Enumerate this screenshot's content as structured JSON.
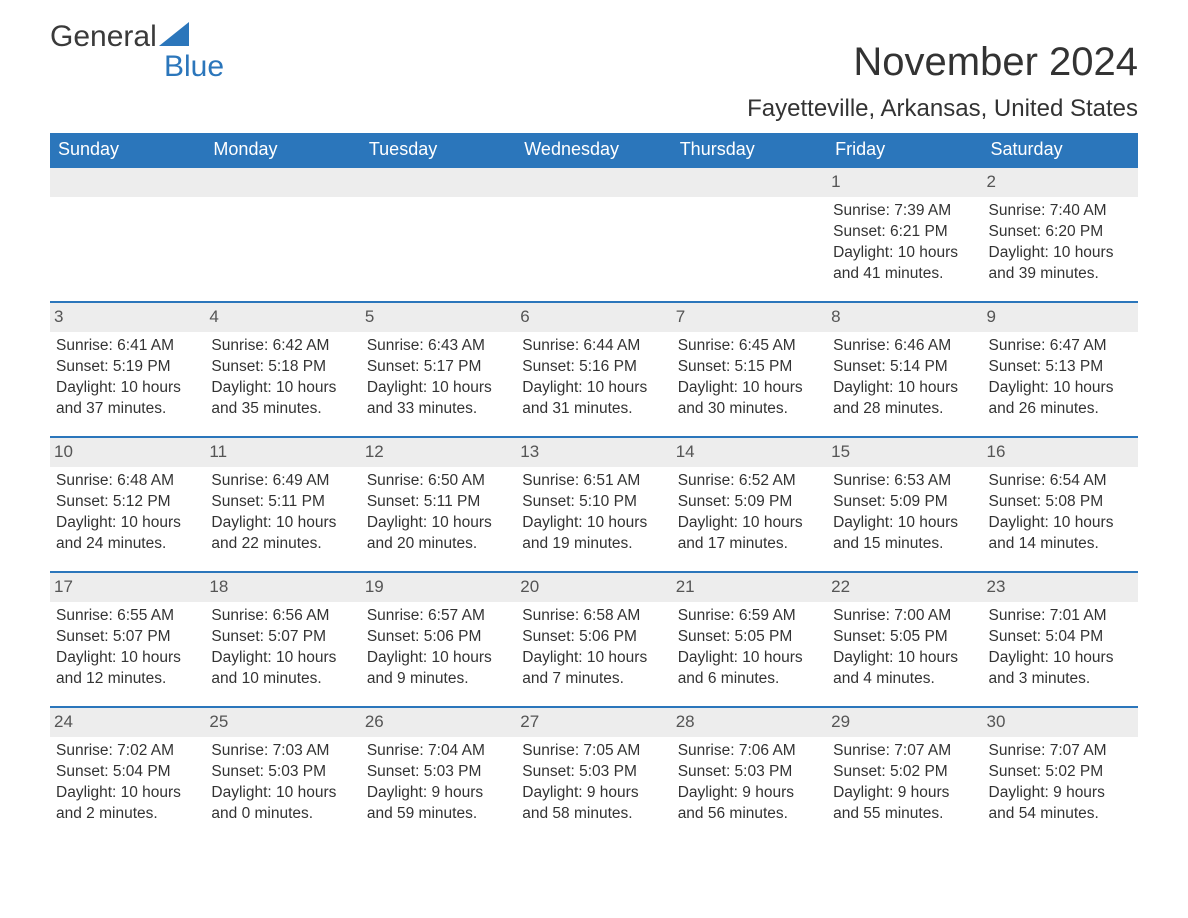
{
  "brand": {
    "part1": "General",
    "part2": "Blue"
  },
  "title": "November 2024",
  "location": "Fayetteville, Arkansas, United States",
  "colors": {
    "header_bg": "#2b76bb",
    "header_text": "#ffffff",
    "daynum_bg": "#ededed",
    "daynum_text": "#555555",
    "body_text": "#333333",
    "border": "#2b76bb",
    "brand_accent": "#2b76bb"
  },
  "day_headers": [
    "Sunday",
    "Monday",
    "Tuesday",
    "Wednesday",
    "Thursday",
    "Friday",
    "Saturday"
  ],
  "weeks": [
    [
      {
        "day": "",
        "sunrise": "",
        "sunset": "",
        "daylight": ""
      },
      {
        "day": "",
        "sunrise": "",
        "sunset": "",
        "daylight": ""
      },
      {
        "day": "",
        "sunrise": "",
        "sunset": "",
        "daylight": ""
      },
      {
        "day": "",
        "sunrise": "",
        "sunset": "",
        "daylight": ""
      },
      {
        "day": "",
        "sunrise": "",
        "sunset": "",
        "daylight": ""
      },
      {
        "day": "1",
        "sunrise": "Sunrise: 7:39 AM",
        "sunset": "Sunset: 6:21 PM",
        "daylight": "Daylight: 10 hours and 41 minutes."
      },
      {
        "day": "2",
        "sunrise": "Sunrise: 7:40 AM",
        "sunset": "Sunset: 6:20 PM",
        "daylight": "Daylight: 10 hours and 39 minutes."
      }
    ],
    [
      {
        "day": "3",
        "sunrise": "Sunrise: 6:41 AM",
        "sunset": "Sunset: 5:19 PM",
        "daylight": "Daylight: 10 hours and 37 minutes."
      },
      {
        "day": "4",
        "sunrise": "Sunrise: 6:42 AM",
        "sunset": "Sunset: 5:18 PM",
        "daylight": "Daylight: 10 hours and 35 minutes."
      },
      {
        "day": "5",
        "sunrise": "Sunrise: 6:43 AM",
        "sunset": "Sunset: 5:17 PM",
        "daylight": "Daylight: 10 hours and 33 minutes."
      },
      {
        "day": "6",
        "sunrise": "Sunrise: 6:44 AM",
        "sunset": "Sunset: 5:16 PM",
        "daylight": "Daylight: 10 hours and 31 minutes."
      },
      {
        "day": "7",
        "sunrise": "Sunrise: 6:45 AM",
        "sunset": "Sunset: 5:15 PM",
        "daylight": "Daylight: 10 hours and 30 minutes."
      },
      {
        "day": "8",
        "sunrise": "Sunrise: 6:46 AM",
        "sunset": "Sunset: 5:14 PM",
        "daylight": "Daylight: 10 hours and 28 minutes."
      },
      {
        "day": "9",
        "sunrise": "Sunrise: 6:47 AM",
        "sunset": "Sunset: 5:13 PM",
        "daylight": "Daylight: 10 hours and 26 minutes."
      }
    ],
    [
      {
        "day": "10",
        "sunrise": "Sunrise: 6:48 AM",
        "sunset": "Sunset: 5:12 PM",
        "daylight": "Daylight: 10 hours and 24 minutes."
      },
      {
        "day": "11",
        "sunrise": "Sunrise: 6:49 AM",
        "sunset": "Sunset: 5:11 PM",
        "daylight": "Daylight: 10 hours and 22 minutes."
      },
      {
        "day": "12",
        "sunrise": "Sunrise: 6:50 AM",
        "sunset": "Sunset: 5:11 PM",
        "daylight": "Daylight: 10 hours and 20 minutes."
      },
      {
        "day": "13",
        "sunrise": "Sunrise: 6:51 AM",
        "sunset": "Sunset: 5:10 PM",
        "daylight": "Daylight: 10 hours and 19 minutes."
      },
      {
        "day": "14",
        "sunrise": "Sunrise: 6:52 AM",
        "sunset": "Sunset: 5:09 PM",
        "daylight": "Daylight: 10 hours and 17 minutes."
      },
      {
        "day": "15",
        "sunrise": "Sunrise: 6:53 AM",
        "sunset": "Sunset: 5:09 PM",
        "daylight": "Daylight: 10 hours and 15 minutes."
      },
      {
        "day": "16",
        "sunrise": "Sunrise: 6:54 AM",
        "sunset": "Sunset: 5:08 PM",
        "daylight": "Daylight: 10 hours and 14 minutes."
      }
    ],
    [
      {
        "day": "17",
        "sunrise": "Sunrise: 6:55 AM",
        "sunset": "Sunset: 5:07 PM",
        "daylight": "Daylight: 10 hours and 12 minutes."
      },
      {
        "day": "18",
        "sunrise": "Sunrise: 6:56 AM",
        "sunset": "Sunset: 5:07 PM",
        "daylight": "Daylight: 10 hours and 10 minutes."
      },
      {
        "day": "19",
        "sunrise": "Sunrise: 6:57 AM",
        "sunset": "Sunset: 5:06 PM",
        "daylight": "Daylight: 10 hours and 9 minutes."
      },
      {
        "day": "20",
        "sunrise": "Sunrise: 6:58 AM",
        "sunset": "Sunset: 5:06 PM",
        "daylight": "Daylight: 10 hours and 7 minutes."
      },
      {
        "day": "21",
        "sunrise": "Sunrise: 6:59 AM",
        "sunset": "Sunset: 5:05 PM",
        "daylight": "Daylight: 10 hours and 6 minutes."
      },
      {
        "day": "22",
        "sunrise": "Sunrise: 7:00 AM",
        "sunset": "Sunset: 5:05 PM",
        "daylight": "Daylight: 10 hours and 4 minutes."
      },
      {
        "day": "23",
        "sunrise": "Sunrise: 7:01 AM",
        "sunset": "Sunset: 5:04 PM",
        "daylight": "Daylight: 10 hours and 3 minutes."
      }
    ],
    [
      {
        "day": "24",
        "sunrise": "Sunrise: 7:02 AM",
        "sunset": "Sunset: 5:04 PM",
        "daylight": "Daylight: 10 hours and 2 minutes."
      },
      {
        "day": "25",
        "sunrise": "Sunrise: 7:03 AM",
        "sunset": "Sunset: 5:03 PM",
        "daylight": "Daylight: 10 hours and 0 minutes."
      },
      {
        "day": "26",
        "sunrise": "Sunrise: 7:04 AM",
        "sunset": "Sunset: 5:03 PM",
        "daylight": "Daylight: 9 hours and 59 minutes."
      },
      {
        "day": "27",
        "sunrise": "Sunrise: 7:05 AM",
        "sunset": "Sunset: 5:03 PM",
        "daylight": "Daylight: 9 hours and 58 minutes."
      },
      {
        "day": "28",
        "sunrise": "Sunrise: 7:06 AM",
        "sunset": "Sunset: 5:03 PM",
        "daylight": "Daylight: 9 hours and 56 minutes."
      },
      {
        "day": "29",
        "sunrise": "Sunrise: 7:07 AM",
        "sunset": "Sunset: 5:02 PM",
        "daylight": "Daylight: 9 hours and 55 minutes."
      },
      {
        "day": "30",
        "sunrise": "Sunrise: 7:07 AM",
        "sunset": "Sunset: 5:02 PM",
        "daylight": "Daylight: 9 hours and 54 minutes."
      }
    ]
  ]
}
